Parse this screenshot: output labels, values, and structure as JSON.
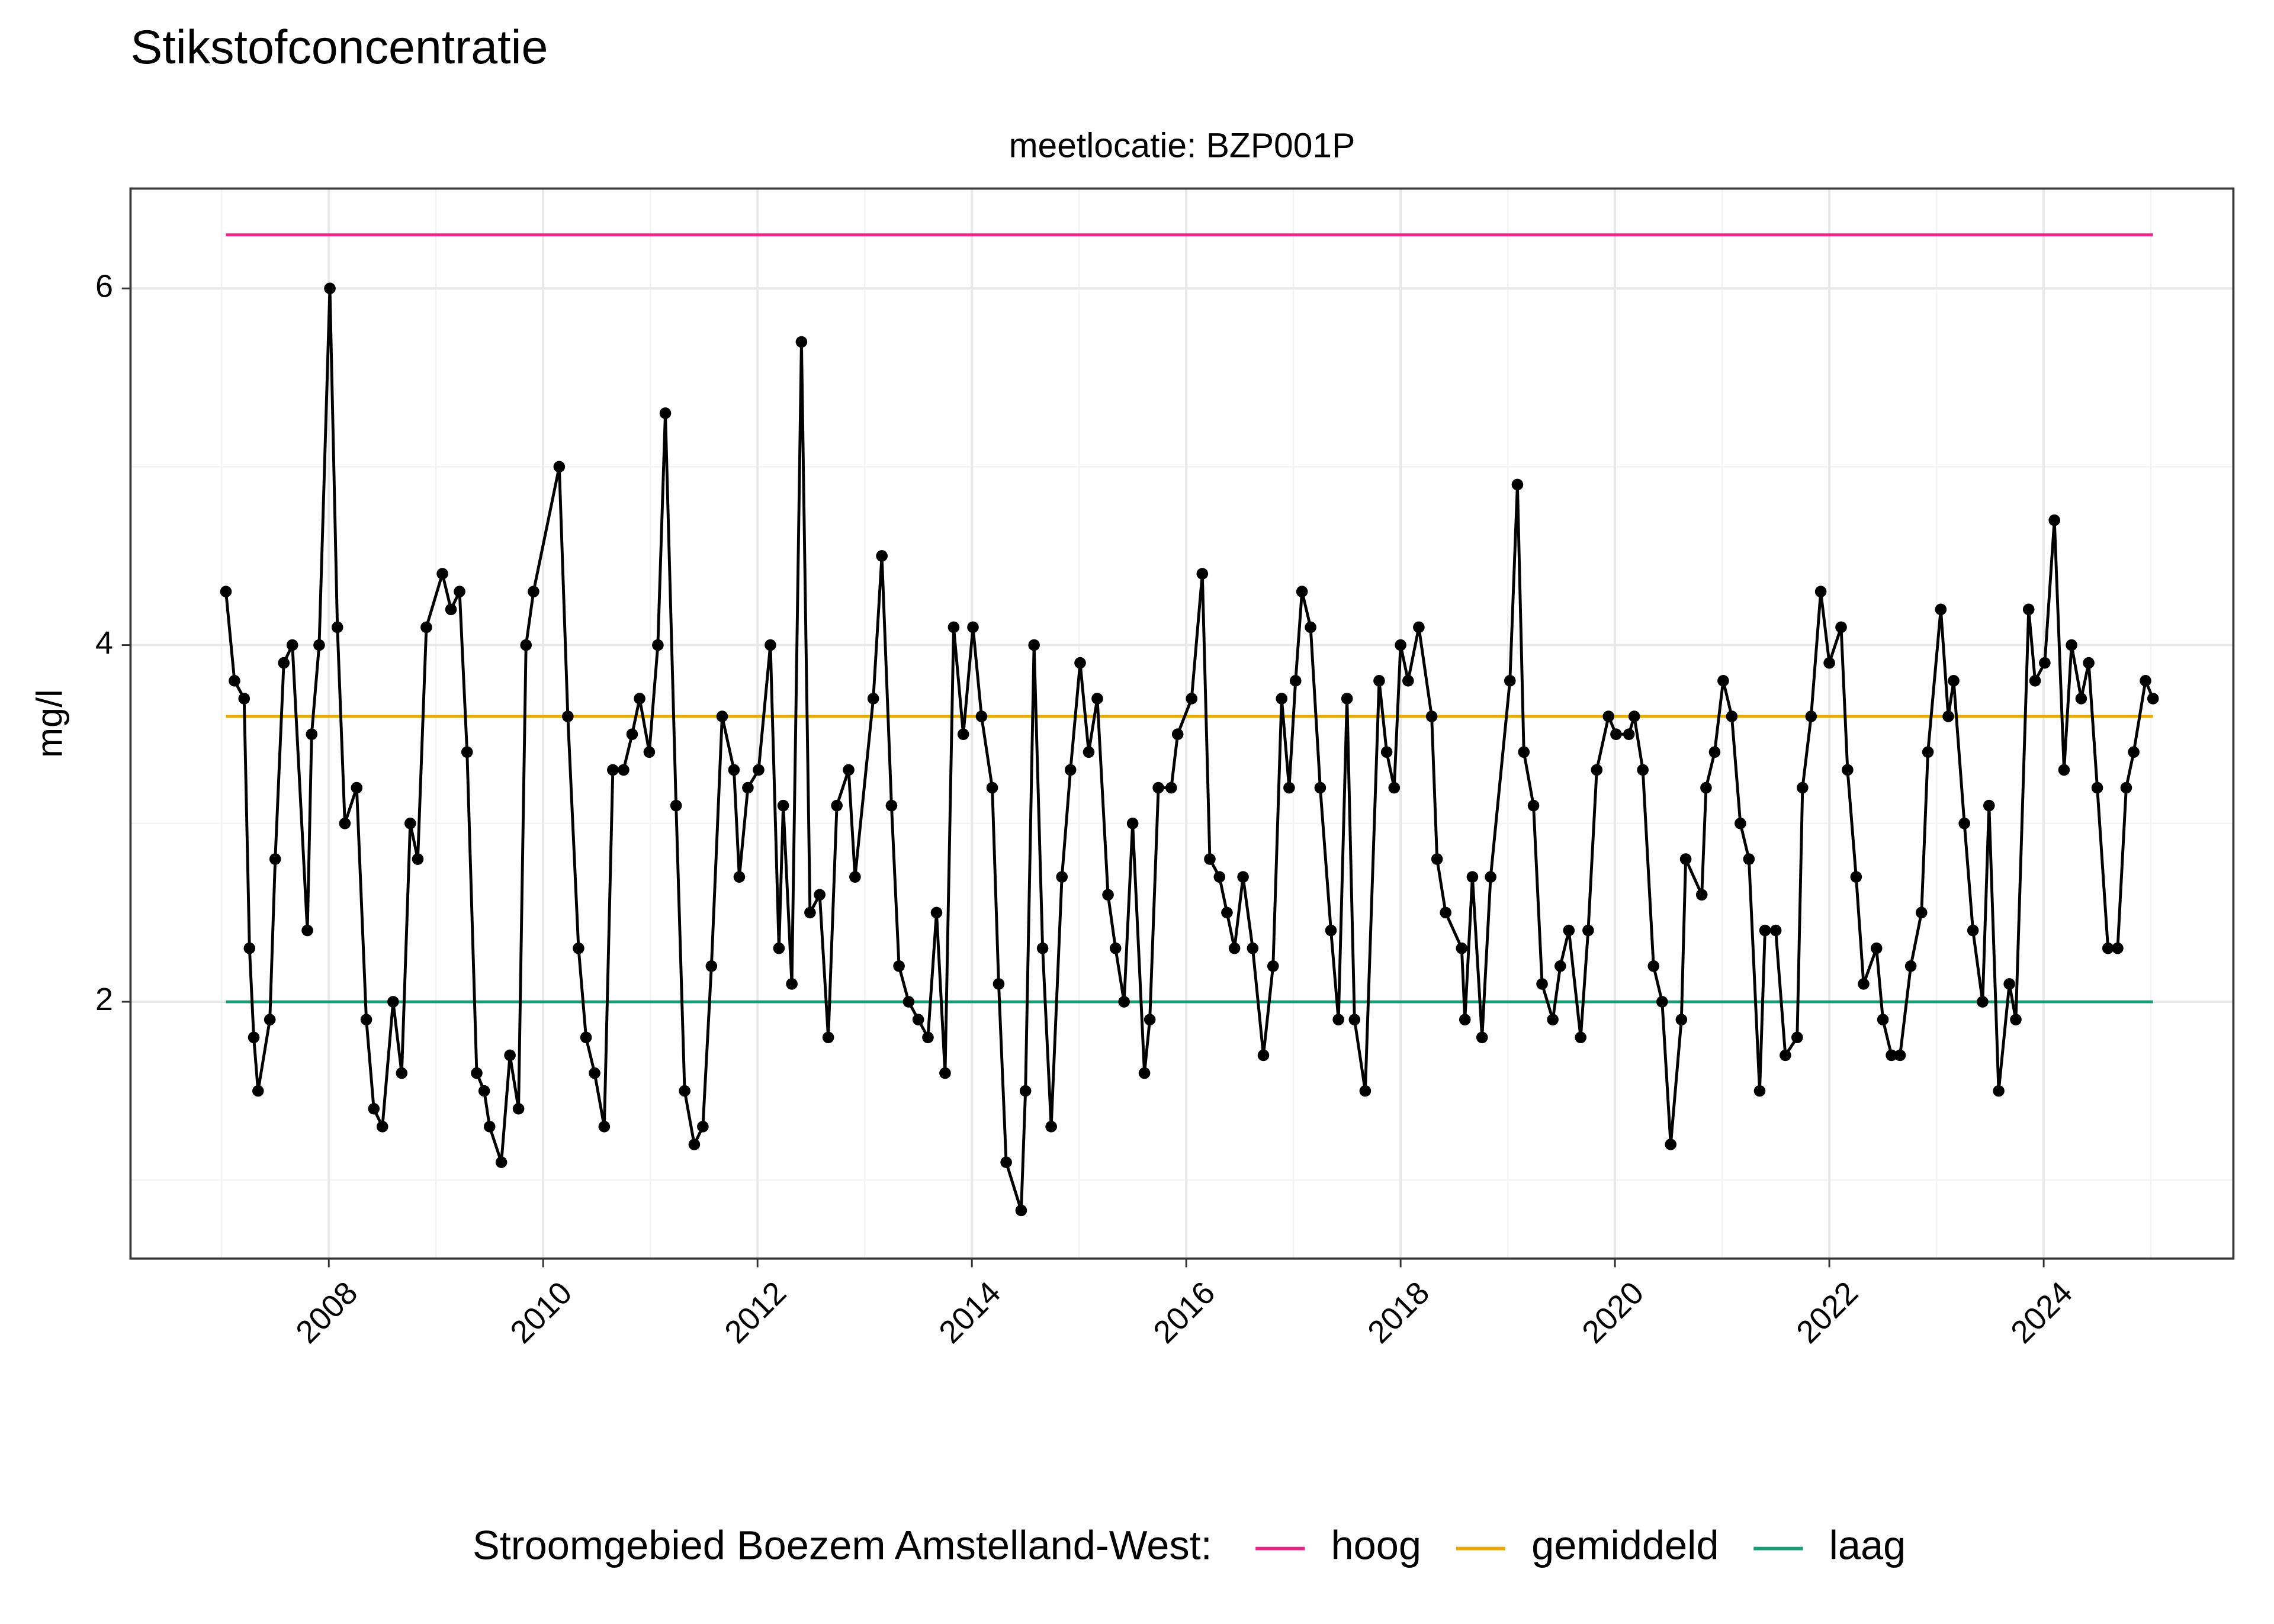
{
  "chart_data": {
    "type": "line",
    "title": "Stikstofconcentratie",
    "subtitle": "meetlocatie: BZP001P",
    "y_label": "mg/l",
    "color": "#000000",
    "markers": true,
    "grid": true,
    "xlim": [
      2006.15,
      2025.77
    ],
    "xticks": [
      2008,
      2010,
      2012,
      2014,
      2016,
      2018,
      2020,
      2022,
      2024
    ],
    "ylim": [
      0.56,
      6.56
    ],
    "yticks": [
      2,
      4,
      6
    ],
    "x": [
      2007.04,
      2007.12,
      2007.21,
      2007.26,
      2007.3,
      2007.34,
      2007.45,
      2007.5,
      2007.58,
      2007.66,
      2007.8,
      2007.84,
      2007.91,
      2008.01,
      2008.08,
      2008.15,
      2008.26,
      2008.35,
      2008.42,
      2008.5,
      2008.6,
      2008.68,
      2008.76,
      2008.83,
      2008.91,
      2009.06,
      2009.14,
      2009.22,
      2009.29,
      2009.38,
      2009.45,
      2009.5,
      2009.61,
      2009.69,
      2009.77,
      2009.84,
      2009.91,
      2010.15,
      2010.23,
      2010.33,
      2010.4,
      2010.48,
      2010.57,
      2010.65,
      2010.75,
      2010.83,
      2010.9,
      2010.99,
      2011.07,
      2011.14,
      2011.24,
      2011.32,
      2011.41,
      2011.49,
      2011.57,
      2011.67,
      2011.78,
      2011.83,
      2011.91,
      2012.01,
      2012.12,
      2012.2,
      2012.24,
      2012.32,
      2012.41,
      2012.49,
      2012.58,
      2012.66,
      2012.74,
      2012.85,
      2012.91,
      2013.08,
      2013.16,
      2013.25,
      2013.32,
      2013.41,
      2013.5,
      2013.59,
      2013.67,
      2013.75,
      2013.83,
      2013.92,
      2014.01,
      2014.09,
      2014.19,
      2014.25,
      2014.32,
      2014.46,
      2014.5,
      2014.58,
      2014.66,
      2014.74,
      2014.84,
      2014.92,
      2015.01,
      2015.09,
      2015.17,
      2015.27,
      2015.34,
      2015.42,
      2015.5,
      2015.61,
      2015.66,
      2015.74,
      2015.86,
      2015.92,
      2016.05,
      2016.15,
      2016.22,
      2016.31,
      2016.38,
      2016.45,
      2016.53,
      2016.62,
      2016.72,
      2016.81,
      2016.89,
      2016.96,
      2017.02,
      2017.08,
      2017.16,
      2017.25,
      2017.35,
      2017.42,
      2017.5,
      2017.57,
      2017.67,
      2017.8,
      2017.87,
      2017.94,
      2018.0,
      2018.07,
      2018.17,
      2018.29,
      2018.34,
      2018.42,
      2018.57,
      2018.6,
      2018.67,
      2018.76,
      2018.84,
      2019.02,
      2019.09,
      2019.15,
      2019.24,
      2019.32,
      2019.42,
      2019.49,
      2019.57,
      2019.68,
      2019.75,
      2019.83,
      2019.94,
      2020.01,
      2020.13,
      2020.18,
      2020.26,
      2020.36,
      2020.44,
      2020.52,
      2020.62,
      2020.66,
      2020.81,
      2020.85,
      2020.93,
      2021.01,
      2021.09,
      2021.17,
      2021.25,
      2021.35,
      2021.4,
      2021.5,
      2021.59,
      2021.7,
      2021.75,
      2021.83,
      2021.92,
      2022.0,
      2022.11,
      2022.17,
      2022.25,
      2022.32,
      2022.44,
      2022.5,
      2022.58,
      2022.66,
      2022.76,
      2022.86,
      2022.92,
      2023.04,
      2023.11,
      2023.16,
      2023.26,
      2023.34,
      2023.43,
      2023.49,
      2023.58,
      2023.68,
      2023.74,
      2023.86,
      2023.92,
      2024.01,
      2024.1,
      2024.19,
      2024.26,
      2024.35,
      2024.42,
      2024.5,
      2024.6,
      2024.69,
      2024.77,
      2024.84,
      2024.95,
      2025.02
    ],
    "values": [
      4.3,
      3.8,
      3.7,
      2.3,
      1.8,
      1.5,
      1.9,
      2.8,
      3.9,
      4.0,
      2.4,
      3.5,
      4.0,
      6.0,
      4.1,
      3.0,
      3.2,
      1.9,
      1.4,
      1.3,
      2.0,
      1.6,
      3.0,
      2.8,
      4.1,
      4.4,
      4.2,
      4.3,
      3.4,
      1.6,
      1.5,
      1.3,
      1.1,
      1.7,
      1.4,
      4.0,
      4.3,
      5.0,
      3.6,
      2.3,
      1.8,
      1.6,
      1.3,
      3.3,
      3.3,
      3.5,
      3.7,
      3.4,
      4.0,
      5.3,
      3.1,
      1.5,
      1.2,
      1.3,
      2.2,
      3.6,
      3.3,
      2.7,
      3.2,
      3.3,
      4.0,
      2.3,
      3.1,
      2.1,
      5.7,
      2.5,
      2.6,
      1.8,
      3.1,
      3.3,
      2.7,
      3.7,
      4.5,
      3.1,
      2.2,
      2.0,
      1.9,
      1.8,
      2.5,
      1.6,
      4.1,
      3.5,
      4.1,
      3.6,
      3.2,
      2.1,
      1.1,
      0.83,
      1.5,
      4.0,
      2.3,
      1.3,
      2.7,
      3.3,
      3.9,
      3.4,
      3.7,
      2.6,
      2.3,
      2.0,
      3.0,
      1.6,
      1.9,
      3.2,
      3.2,
      3.5,
      3.7,
      4.4,
      2.8,
      2.7,
      2.5,
      2.3,
      2.7,
      2.3,
      1.7,
      2.2,
      3.7,
      3.2,
      3.8,
      4.3,
      4.1,
      3.2,
      2.4,
      1.9,
      3.7,
      1.9,
      1.5,
      3.8,
      3.4,
      3.2,
      4.0,
      3.8,
      4.1,
      3.6,
      2.8,
      2.5,
      2.3,
      1.9,
      2.7,
      1.8,
      2.7,
      3.8,
      4.9,
      3.4,
      3.1,
      2.1,
      1.9,
      2.2,
      2.4,
      1.8,
      2.4,
      3.3,
      3.6,
      3.5,
      3.5,
      3.6,
      3.3,
      2.2,
      2.0,
      1.2,
      1.9,
      2.8,
      2.6,
      3.2,
      3.4,
      3.8,
      3.6,
      3.0,
      2.8,
      1.5,
      2.4,
      2.4,
      1.7,
      1.8,
      3.2,
      3.6,
      4.3,
      3.9,
      4.1,
      3.3,
      2.7,
      2.1,
      2.3,
      1.9,
      1.7,
      1.7,
      2.2,
      2.5,
      3.4,
      4.2,
      3.6,
      3.8,
      3.0,
      2.4,
      2.0,
      3.1,
      1.5,
      2.1,
      1.9,
      4.2,
      3.8,
      3.9,
      4.7,
      3.3,
      4.0,
      3.7,
      3.9,
      3.2,
      2.3,
      2.3,
      3.2,
      3.4,
      3.8,
      3.7
    ],
    "legend_title": "Stroomgebied Boezem Amstelland-West:",
    "legend_position": "bottom",
    "reference_lines": [
      {
        "name": "hoog",
        "color": "#e7298a",
        "value": 6.3
      },
      {
        "name": "gemiddeld",
        "color": "#e6ab02",
        "value": 3.6
      },
      {
        "name": "laag",
        "color": "#1b9e77",
        "value": 2.0
      }
    ]
  }
}
